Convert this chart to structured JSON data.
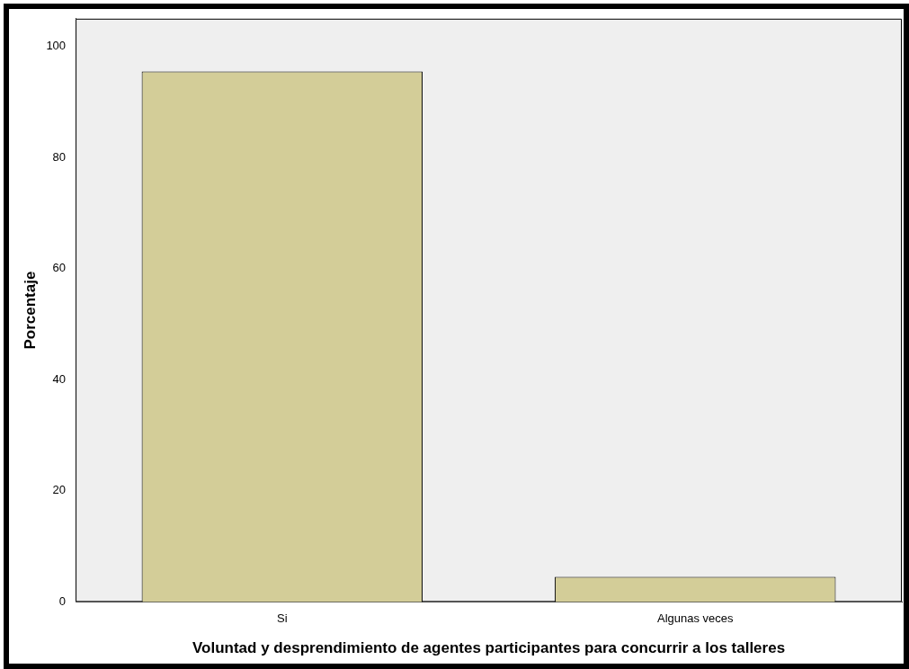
{
  "chart_data": {
    "type": "bar",
    "categories": [
      "Si",
      "Algunas veces"
    ],
    "values": [
      95.5,
      4.5
    ],
    "color": "#d3cd98",
    "xlabel": "Voluntad y desprendimiento de agentes participantes para concurrir a los talleres",
    "ylabel": "Porcentaje",
    "ylim": [
      0,
      105
    ],
    "yticks": [
      0,
      20,
      40,
      60,
      80,
      100
    ],
    "grid": false,
    "legend": false
  }
}
